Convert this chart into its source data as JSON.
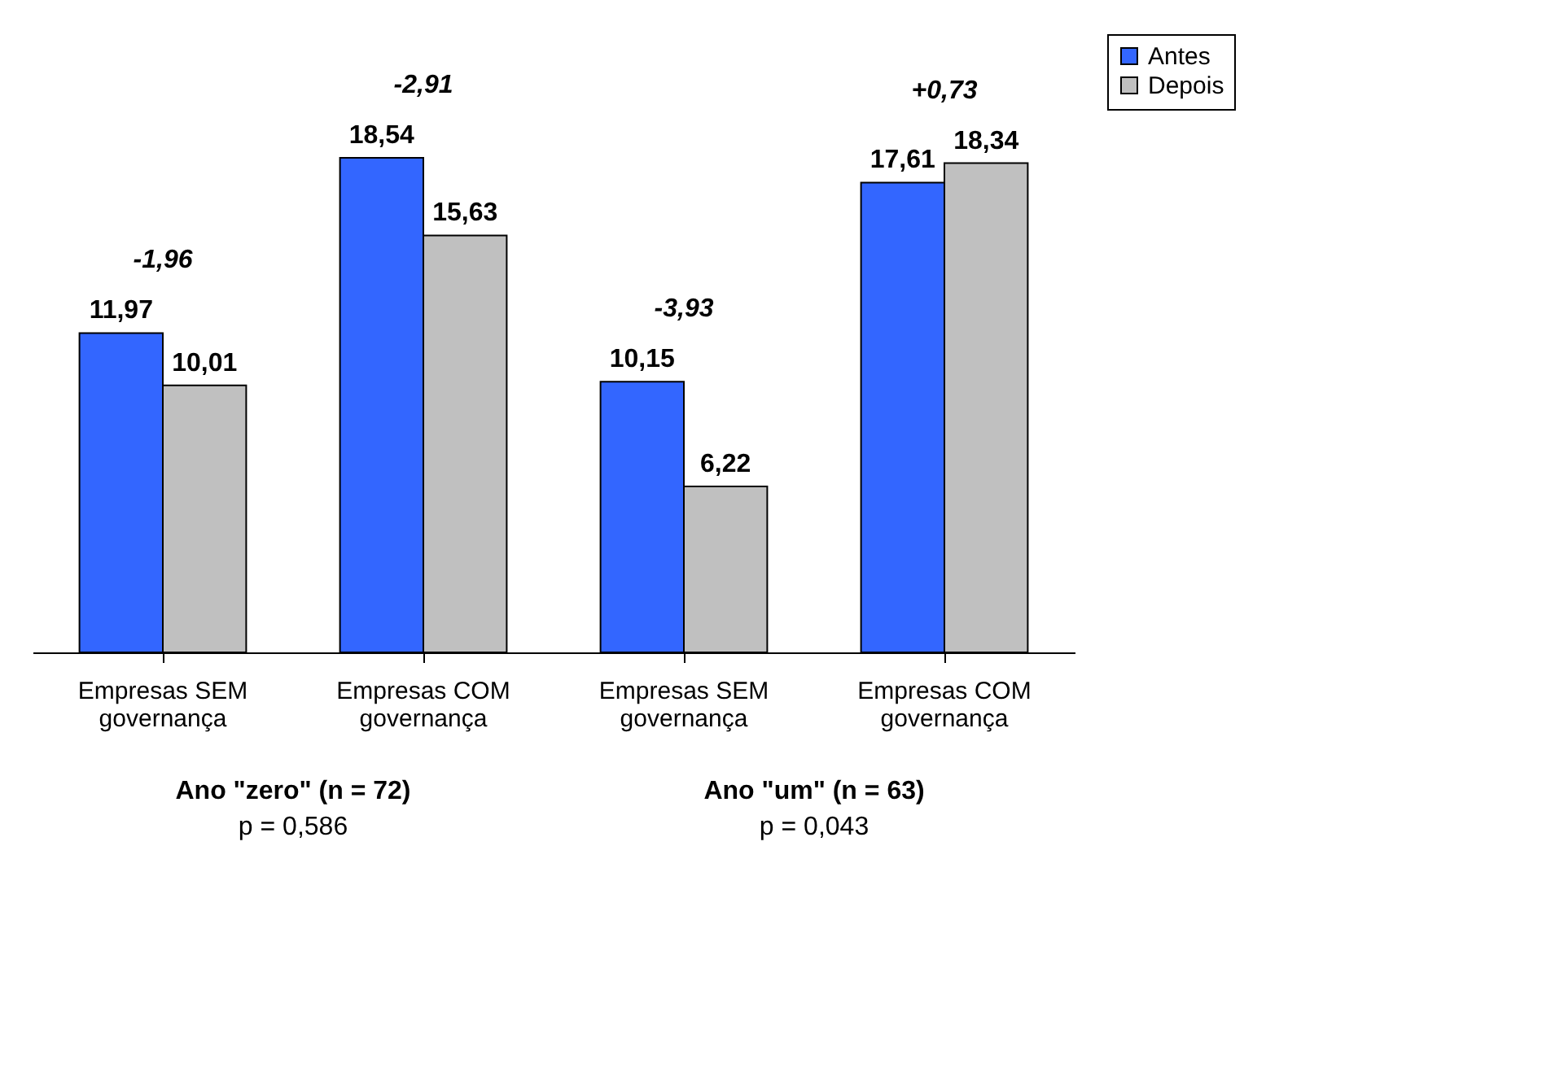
{
  "chart_data": {
    "type": "bar",
    "categories": [
      "Empresas SEM\ngovernança",
      "Empresas COM\ngovernança",
      "Empresas SEM\ngovernança",
      "Empresas COM\ngovernança"
    ],
    "series": [
      {
        "name": "Antes",
        "color": "#3366ff",
        "values": [
          11.97,
          18.54,
          10.15,
          17.61
        ],
        "value_labels": [
          "11,97",
          "18,54",
          "10,15",
          "17,61"
        ]
      },
      {
        "name": "Depois",
        "color": "#c0c0c0",
        "values": [
          10.01,
          15.63,
          6.22,
          18.34
        ],
        "value_labels": [
          "10,01",
          "15,63",
          "6,22",
          "18,34"
        ]
      }
    ],
    "legend": "right",
    "annotations": [
      "-1,96",
      "-2,91",
      "-3,93",
      "+0,73",
      "Ano \"zero\" (n = 72)",
      "p = 0,586",
      "Ano \"um\" (n = 63)",
      "p = 0,043"
    ]
  }
}
